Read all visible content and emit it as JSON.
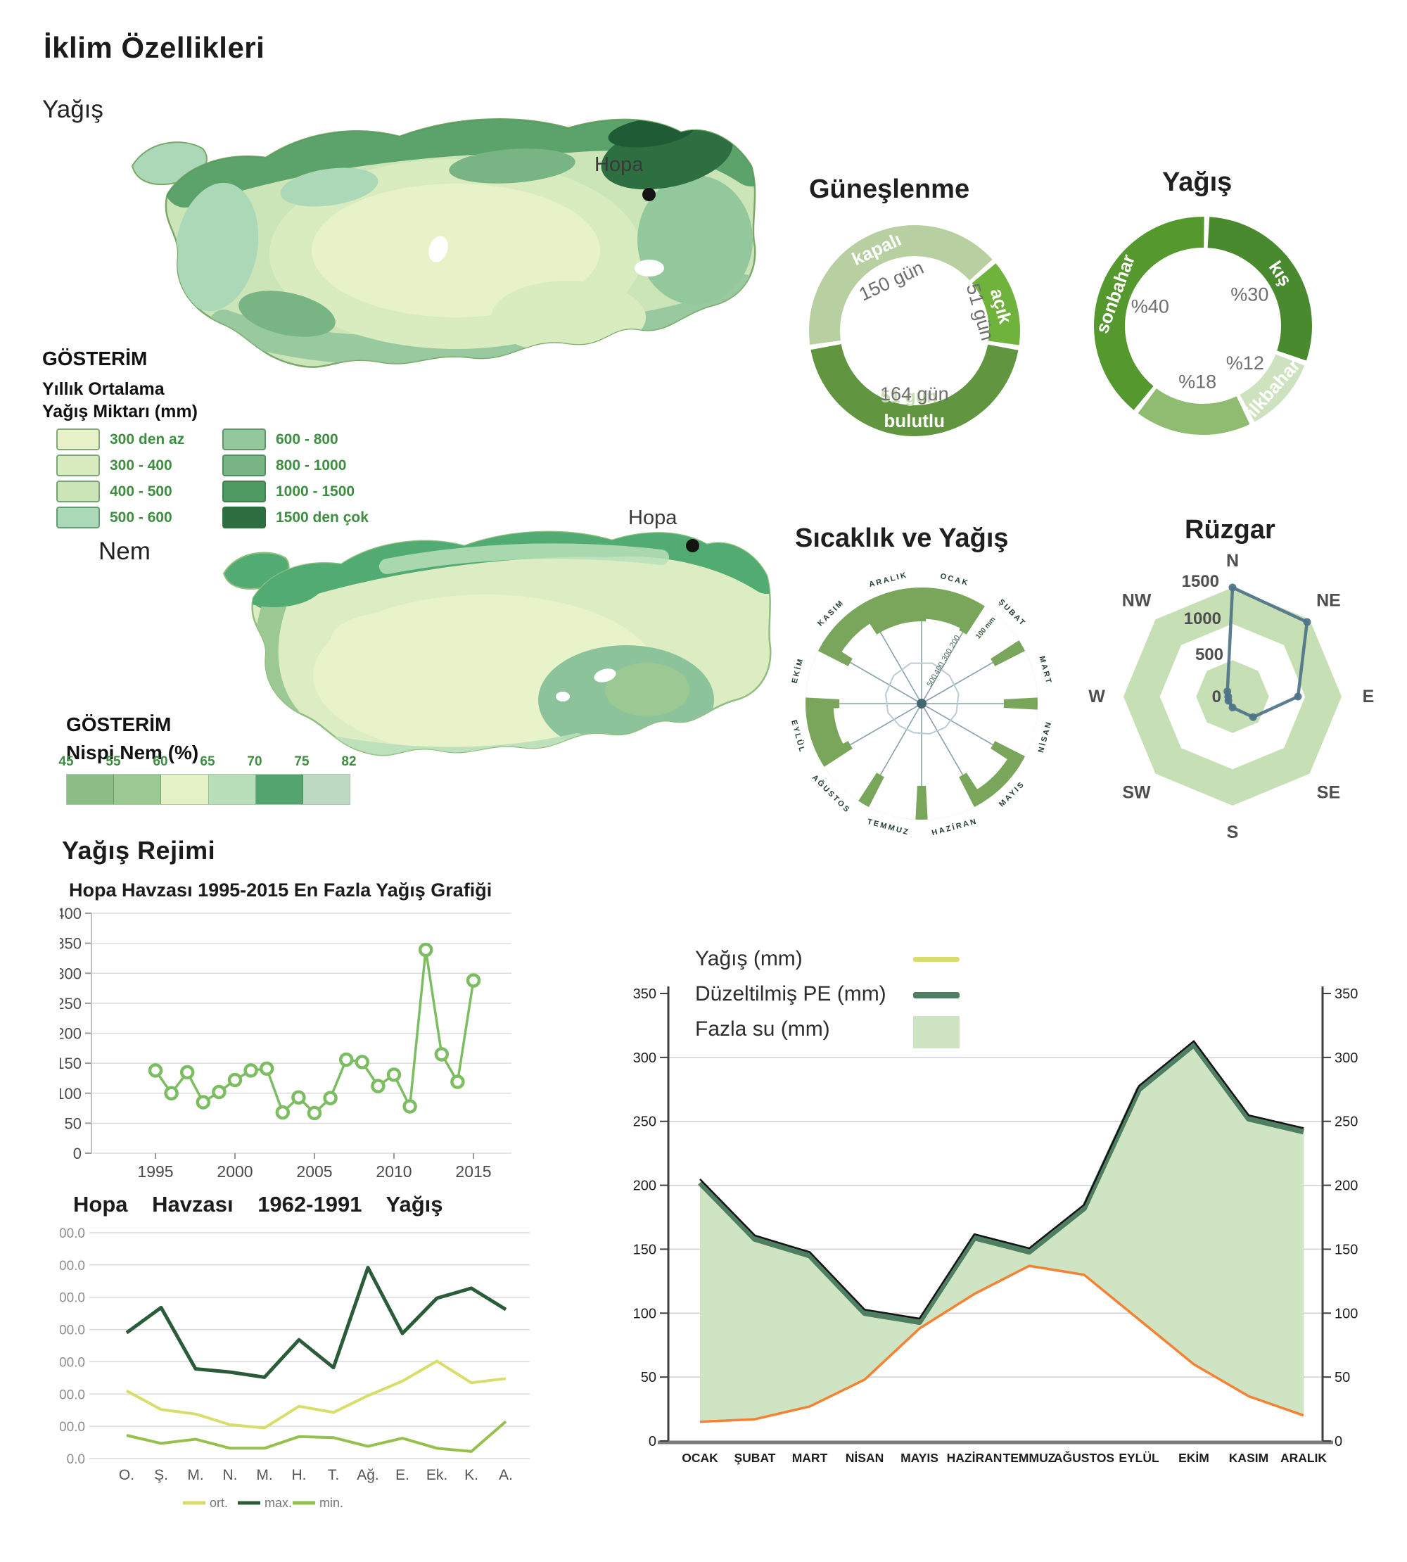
{
  "page": {
    "title": "İklim Özellikleri"
  },
  "labels": {
    "precip_section": "Yağış",
    "humidity_section": "Nem",
    "regime_heading": "Yağış Rejimi",
    "hopa": "Hopa",
    "gosterim": "GÖSTERİM",
    "precip_legend_line1": "Yıllık Ortalama",
    "precip_legend_line2": "Yağış Miktarı (mm)",
    "humidity_legend_title": "Nispi Nem (%)"
  },
  "precip_legend": {
    "classes": [
      {
        "label": "300 den az",
        "color": "#e7f2c8"
      },
      {
        "label": "300 - 400",
        "color": "#d9ecbf"
      },
      {
        "label": "400 - 500",
        "color": "#cbe5b8"
      },
      {
        "label": "500 - 600",
        "color": "#abd9b8"
      },
      {
        "label": "600 - 800",
        "color": "#93c79c"
      },
      {
        "label": "800 - 1000",
        "color": "#79b584"
      },
      {
        "label": "1000 - 1500",
        "color": "#4f9a63"
      },
      {
        "label": "1500 den çok",
        "color": "#2e6f42"
      }
    ]
  },
  "humidity_legend": {
    "ticks": [
      "45",
      "55",
      "60",
      "65",
      "70",
      "75",
      "82"
    ],
    "colors": [
      "#8cbd86",
      "#9cc993",
      "#e3f1c5",
      "#b9dfba",
      "#53a36c",
      "#bdd9c2"
    ]
  },
  "chart_data": [
    {
      "id": "sunshine",
      "type": "pie",
      "title": "Güneşlenme",
      "unit": "gün",
      "categories": [
        "kapalı",
        "açık",
        "bulutlu"
      ],
      "values": [
        150,
        51,
        164
      ],
      "value_labels": [
        "150 gün",
        "51 gün",
        "164 gün"
      ],
      "ghost_label": "51 gün",
      "colors": [
        "#b8cfa2",
        "#6fb33d",
        "#61953f"
      ],
      "start_angle": -99
    },
    {
      "id": "precip_seasons",
      "type": "pie",
      "title": "Yağış",
      "categories": [
        "kış",
        "ilkbahar",
        "",
        "sonbahar"
      ],
      "values": [
        30,
        12,
        18,
        40
      ],
      "value_labels": [
        "%30",
        "%12",
        "%18",
        "%40"
      ],
      "colors": [
        "#4a8a2f",
        "#cfe2c0",
        "#8fbc71",
        "#55982e"
      ],
      "start_angle": 2
    },
    {
      "id": "temp_precip_polar",
      "type": "bar",
      "title": "Sıcaklık ve Yağış",
      "categories": [
        "OCAK",
        "ŞUBAT",
        "MART",
        "NİSAN",
        "MAYIS",
        "HAZİRAN",
        "TEMMUZ",
        "AĞUSTOS",
        "EYLÜL",
        "EKİM",
        "KASIM",
        "ARALIK"
      ],
      "radial_axis_labels": [
        "100 mm",
        "200",
        "300",
        "400",
        "500"
      ],
      "petal_fractions": [
        0.73,
        1,
        1,
        1,
        0.88,
        1,
        1,
        1,
        0.76,
        1,
        0.82,
        0.66
      ],
      "inner_fractions": [
        0.36,
        0.34,
        0.33,
        0.31,
        0.29,
        0.27,
        0.26,
        0.27,
        0.3,
        0.32,
        0.34,
        0.36
      ],
      "ring_color": "#79a65b",
      "spoke_color": "#8aa1ab",
      "inner_line_color": "#b9ccd1"
    },
    {
      "id": "wind",
      "type": "line",
      "title": "Rüzgar",
      "categories": [
        "N",
        "NE",
        "E",
        "SE",
        "S",
        "SW",
        "W",
        "NW"
      ],
      "values": [
        1500,
        1450,
        900,
        400,
        150,
        80,
        60,
        100
      ],
      "ring_labels": [
        "0",
        "500",
        "1000",
        "1500"
      ],
      "ylim": [
        0,
        1500
      ],
      "band_color": "#c7dfb4",
      "line_color": "#4e7388"
    },
    {
      "id": "max_rain_1995_2015",
      "type": "line",
      "title": "Hopa Havzası 1995-2015 En Fazla Yağış Grafiği",
      "x": [
        1995,
        1996,
        1997,
        1998,
        1999,
        2000,
        2001,
        2002,
        2003,
        2004,
        2005,
        2006,
        2007,
        2008,
        2009,
        2010,
        2011,
        2012,
        2013,
        2014,
        2015
      ],
      "values": [
        138,
        100,
        135,
        85,
        102,
        122,
        138,
        141,
        68,
        93,
        67,
        92,
        156,
        152,
        112,
        131,
        78,
        339,
        165,
        119,
        288
      ],
      "ylim": [
        0,
        400
      ],
      "ytick_step": 50,
      "xticks": [
        1995,
        2000,
        2005,
        2010,
        2015
      ],
      "color": "#7cbd62",
      "grid": true
    },
    {
      "id": "rain_1962_1991",
      "type": "line",
      "title": "Hopa Havzası 1962-1991 Yağış",
      "categories": [
        "O.",
        "Ş.",
        "M.",
        "N.",
        "M.",
        "H.",
        "T.",
        "Ağ.",
        "E.",
        "Ek.",
        "K.",
        "A."
      ],
      "series": [
        {
          "name": "ort.",
          "color": "#d9dd6a",
          "values": [
            210,
            152,
            138,
            105,
            95,
            162,
            143,
            195,
            240,
            302,
            235,
            248
          ]
        },
        {
          "name": "max.",
          "color": "#2b5c3a",
          "values": [
            390,
            468,
            278,
            268,
            252,
            368,
            282,
            592,
            388,
            497,
            528,
            462
          ]
        },
        {
          "name": "min.",
          "color": "#96c04c",
          "values": [
            72,
            47,
            60,
            32,
            32,
            68,
            65,
            38,
            63,
            32,
            22,
            115
          ]
        }
      ],
      "ylim": [
        0,
        700
      ],
      "ytick_step": 100,
      "grid": true,
      "legend_position": "bottom"
    },
    {
      "id": "water_balance",
      "type": "area",
      "legend": [
        "Yağış (mm)",
        "Düzeltilmiş PE (mm)",
        "Fazla su (mm)"
      ],
      "categories": [
        "OCAK",
        "ŞUBAT",
        "MART",
        "NİSAN",
        "MAYIS",
        "HAZİRAN",
        "TEMMUZ",
        "AĞUSTOS",
        "EYLÜL",
        "EKİM",
        "KASIM",
        "ARALIK"
      ],
      "series": [
        {
          "name": "Yağış (mm)",
          "color": "#d9dd6a",
          "values": [
            202,
            158,
            145,
            100,
            93,
            159,
            148,
            182,
            275,
            310,
            252,
            242
          ]
        },
        {
          "name": "Düzeltilmiş PE (mm)",
          "color": "#f58233",
          "values": [
            15,
            17,
            27,
            48,
            88,
            115,
            137,
            130,
            95,
            60,
            35,
            20
          ]
        }
      ],
      "fill_between_label": "Fazla su (mm)",
      "fill_color": "#cfe4c3",
      "top_line_color": "#4f7f62",
      "top_edge_color": "#141414",
      "ylim": [
        0,
        350
      ],
      "ytick_step": 50,
      "grid": true,
      "dual_axis": true
    }
  ]
}
